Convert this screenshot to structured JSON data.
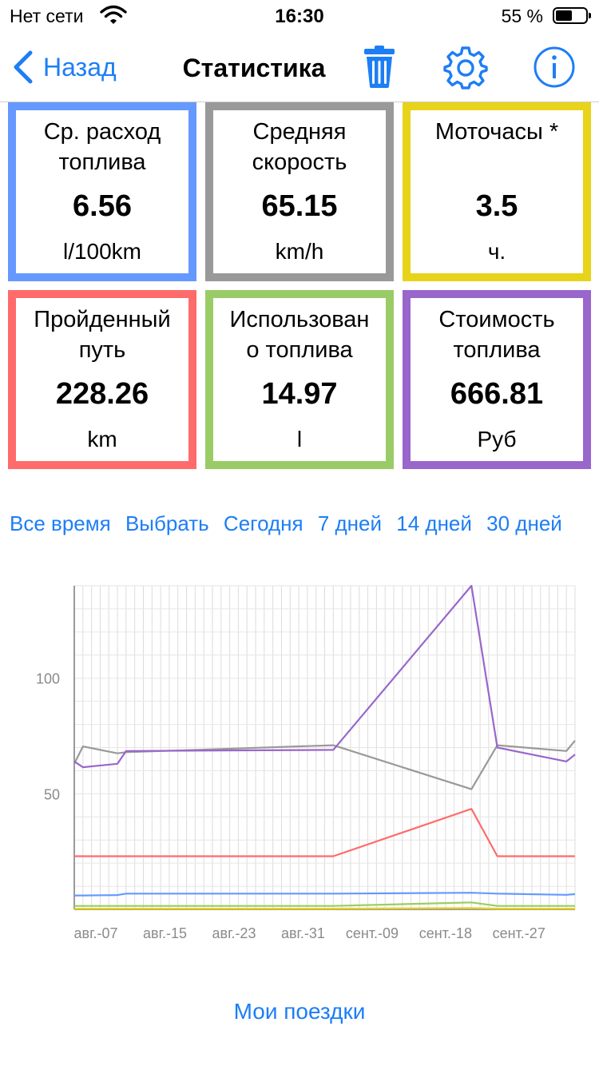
{
  "status_bar": {
    "carrier": "Нет сети",
    "time": "16:30",
    "battery": "55 %",
    "battery_level": 0.55
  },
  "nav": {
    "back_label": "Назад",
    "title": "Статистика"
  },
  "stats": [
    {
      "label": "Ср. расход\nтоплива",
      "value": "6.56",
      "unit": "l/100km",
      "color": "#6699ff"
    },
    {
      "label": "Средняя\nскорость",
      "value": "65.15",
      "unit": "km/h",
      "color": "#999999"
    },
    {
      "label": "Моточасы *",
      "value": "3.5",
      "unit": "ч.",
      "color": "#e8d31b"
    },
    {
      "label": "Пройденный\nпуть",
      "value": "228.26",
      "unit": "km",
      "color": "#ff6b6b"
    },
    {
      "label": "Использован\nо топлива",
      "value": "14.97",
      "unit": "l",
      "color": "#99cc66"
    },
    {
      "label": "Стоимость\nтоплива",
      "value": "666.81",
      "unit": "Руб",
      "color": "#9966cc"
    }
  ],
  "periods": [
    "Все время",
    "Выбрать",
    "Сегодня",
    "7 дней",
    "14 дней",
    "30 дней"
  ],
  "chart_data": {
    "type": "line",
    "x": [
      0,
      1,
      5,
      6,
      30,
      46,
      49,
      57,
      58
    ],
    "x_tick_labels": [
      "авг.-07",
      "авг.-15",
      "авг.-23",
      "авг.-31",
      "сент.-09",
      "сент.-18",
      "сент.-27"
    ],
    "x_tick_positions": [
      2.5,
      10.5,
      18.5,
      26.5,
      34.5,
      43,
      51.5
    ],
    "xlim": [
      0,
      58
    ],
    "ylim": [
      0,
      140
    ],
    "y_ticks": [
      50,
      100
    ],
    "grid": true,
    "series": [
      {
        "color": "#9966cc",
        "values": [
          64,
          61.5,
          63,
          68.5,
          69,
          140,
          70,
          64,
          67
        ]
      },
      {
        "color": "#999999",
        "values": [
          63,
          70.5,
          67.5,
          68,
          71,
          52,
          71,
          68.5,
          73
        ]
      },
      {
        "color": "#ff6b6b",
        "values": [
          23,
          23,
          23,
          23,
          23,
          43.5,
          23,
          23,
          23
        ]
      },
      {
        "color": "#6699ff",
        "values": [
          6,
          6,
          6.2,
          6.8,
          6.8,
          7.2,
          6.8,
          6.3,
          6.6
        ]
      },
      {
        "color": "#99cc66",
        "values": [
          1.5,
          1.5,
          1.5,
          1.5,
          1.5,
          3,
          1.5,
          1.5,
          1.5
        ]
      },
      {
        "color": "#e8d31b",
        "values": [
          0.3,
          0.3,
          0.3,
          0.3,
          0.3,
          0.6,
          0.3,
          0.3,
          0.3
        ]
      }
    ]
  },
  "footer": {
    "trips_label": "Мои поездки"
  }
}
